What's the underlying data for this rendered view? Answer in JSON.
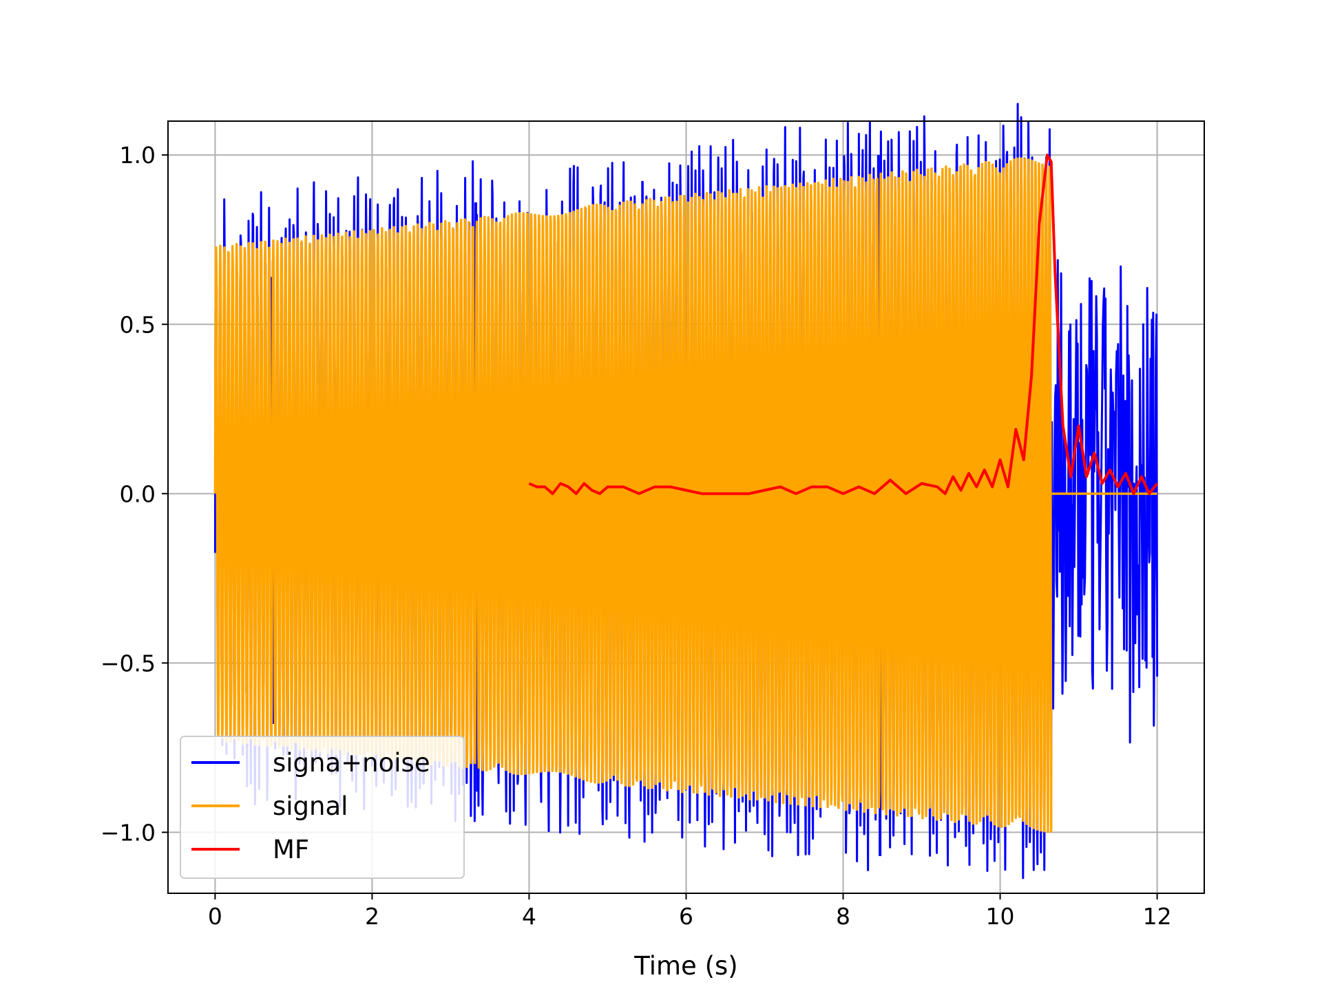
{
  "chart_data": {
    "type": "line",
    "title": "",
    "xlabel": "Time (s)",
    "ylabel": "",
    "xlim": [
      -0.6,
      12.6
    ],
    "ylim": [
      -1.18,
      1.1
    ],
    "xticks": [
      0,
      2,
      4,
      6,
      8,
      10,
      12
    ],
    "xtick_labels": [
      "0",
      "2",
      "4",
      "6",
      "8",
      "10",
      "12"
    ],
    "yticks": [
      -1.0,
      -0.5,
      0.0,
      0.5,
      1.0
    ],
    "ytick_labels": [
      "−1.0",
      "−0.5",
      "0.0",
      "0.5",
      "1.0"
    ],
    "grid": true,
    "legend_position": "lower-left",
    "signal_description": {
      "signal_start": 0,
      "signal_end": 10.65,
      "signal_envelope_start": 0.73,
      "signal_envelope_end": 1.0,
      "record_end": 12.0,
      "noise_spikes": [
        {
          "x": 0.72,
          "y": 0.64
        },
        {
          "x": 0.75,
          "y": -0.68
        },
        {
          "x": 3.32,
          "y": 0.86
        },
        {
          "x": 3.34,
          "y": -0.88
        },
        {
          "x": 8.45,
          "y": 1.0
        },
        {
          "x": 8.47,
          "y": -1.07
        }
      ]
    },
    "series": [
      {
        "name": "signa+noise",
        "color": "#0000ff"
      },
      {
        "name": "signal",
        "color": "#ffa500"
      },
      {
        "name": "MF",
        "color": "#ff0000",
        "x": [
          4.0,
          4.1,
          4.2,
          4.3,
          4.4,
          4.5,
          4.6,
          4.7,
          4.8,
          4.9,
          5.0,
          5.2,
          5.4,
          5.6,
          5.8,
          6.0,
          6.2,
          6.4,
          6.6,
          6.8,
          7.0,
          7.2,
          7.4,
          7.6,
          7.8,
          8.0,
          8.2,
          8.4,
          8.6,
          8.8,
          9.0,
          9.2,
          9.3,
          9.4,
          9.5,
          9.6,
          9.7,
          9.8,
          9.9,
          10.0,
          10.1,
          10.2,
          10.3,
          10.4,
          10.5,
          10.6,
          10.65,
          10.7,
          10.8,
          10.9,
          11.0,
          11.1,
          11.2,
          11.3,
          11.4,
          11.5,
          11.6,
          11.7,
          11.8,
          11.9,
          12.0
        ],
        "values": [
          0.03,
          0.02,
          0.02,
          0.0,
          0.03,
          0.02,
          0.0,
          0.03,
          0.01,
          0.0,
          0.02,
          0.02,
          0.0,
          0.02,
          0.02,
          0.01,
          0.0,
          0.0,
          0.0,
          0.0,
          0.01,
          0.02,
          0.0,
          0.02,
          0.02,
          0.0,
          0.02,
          0.0,
          0.04,
          0.0,
          0.03,
          0.02,
          0.0,
          0.05,
          0.01,
          0.06,
          0.02,
          0.07,
          0.02,
          0.1,
          0.02,
          0.19,
          0.1,
          0.35,
          0.8,
          1.0,
          0.98,
          0.65,
          0.2,
          0.05,
          0.2,
          0.05,
          0.12,
          0.03,
          0.07,
          0.02,
          0.06,
          0.0,
          0.05,
          0.0,
          0.03
        ]
      }
    ]
  }
}
